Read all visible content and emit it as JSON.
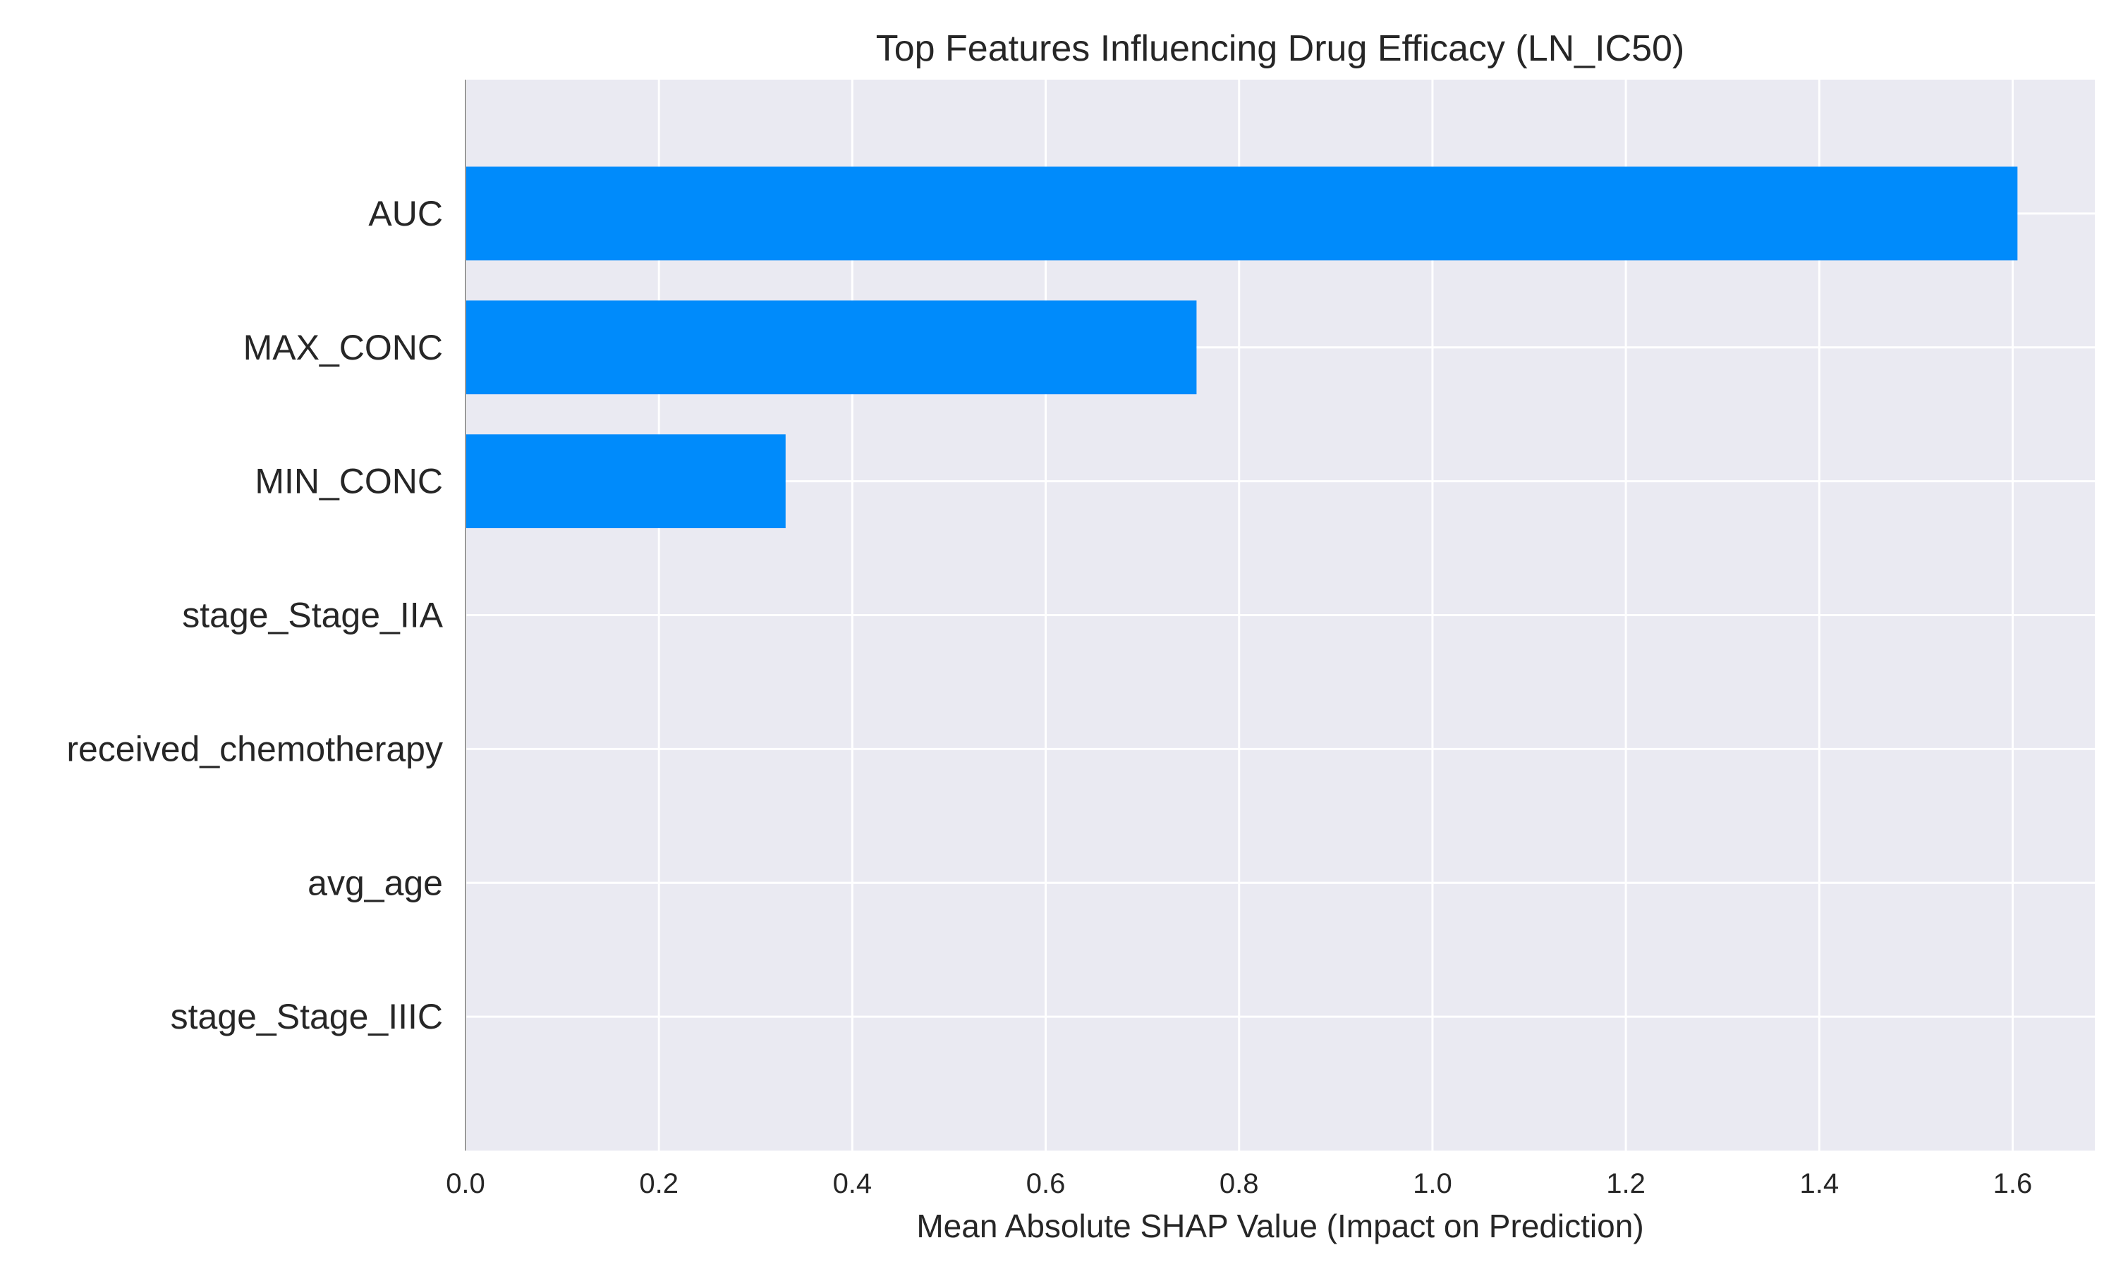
{
  "chart_data": {
    "type": "bar",
    "orientation": "horizontal",
    "title": "Top Features Influencing Drug Efficacy (LN_IC50)",
    "xlabel": "Mean Absolute SHAP Value (Impact on Prediction)",
    "ylabel": "",
    "categories": [
      "AUC",
      "MAX_CONC",
      "MIN_CONC",
      "stage_Stage_IIA",
      "received_chemotherapy",
      "avg_age",
      "stage_Stage_IIIC"
    ],
    "values": [
      1.605,
      0.756,
      0.331,
      0,
      0,
      0,
      0
    ],
    "xlim": [
      0,
      1.685
    ],
    "xticks": [
      0.0,
      0.2,
      0.4,
      0.6,
      0.8,
      1.0,
      1.2,
      1.4,
      1.6
    ],
    "xtick_labels": [
      "0.0",
      "0.2",
      "0.4",
      "0.6",
      "0.8",
      "1.0",
      "1.2",
      "1.4",
      "1.6"
    ],
    "grid": true,
    "bar_color": "#008BFB",
    "background_color": "#EAEAF2",
    "grid_color": "#FFFFFF"
  }
}
